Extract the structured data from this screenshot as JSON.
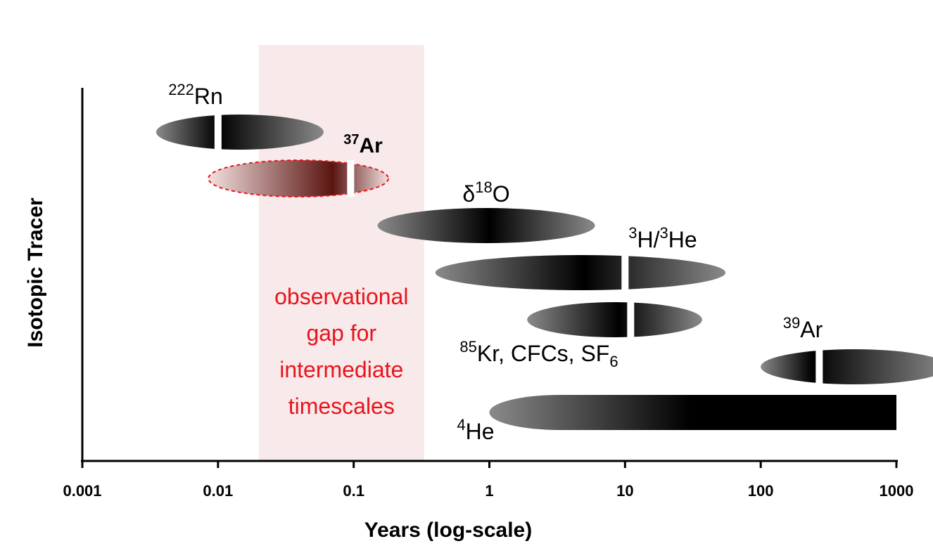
{
  "chart_data": {
    "type": "range",
    "xlabel": "Years (log-scale)",
    "ylabel": "Isotopic Tracer",
    "xscale": "log",
    "xlim": [
      0.001,
      1000
    ],
    "xticks": [
      "0.001",
      "0.01",
      "0.1",
      "1",
      "10",
      "100",
      "1000"
    ],
    "gap": {
      "x_range": [
        0.02,
        0.33
      ],
      "lines": [
        "observational",
        "gap for",
        "intermediate",
        "timescales"
      ],
      "text_color": "#e8141c",
      "fill_color": "#f8e9ea"
    },
    "tracers": [
      {
        "id": "rn222",
        "mass": "222",
        "symbol": "Rn",
        "range": [
          0.0035,
          0.06
        ],
        "peak": 0.01,
        "marker": 0.01,
        "shape": "ellipse",
        "color": "#000000"
      },
      {
        "id": "ar37",
        "mass": "37",
        "symbol": "Ar",
        "range": [
          0.0085,
          0.18
        ],
        "peak": 0.07,
        "marker": 0.095,
        "shape": "ellipse",
        "color": "#5a1410",
        "label_color": "#e8141c",
        "outline": "#e8141c"
      },
      {
        "id": "o18",
        "prefix": "δ",
        "mass": "18",
        "symbol": "O",
        "range": [
          0.15,
          6
        ],
        "peak": 1.0,
        "marker": null,
        "shape": "ellipse",
        "color": "#000000"
      },
      {
        "id": "h3he3",
        "mass": "3",
        "symbol": "H/",
        "mass2": "3",
        "symbol2": "He",
        "range": [
          0.4,
          55
        ],
        "peak": 5,
        "marker": 10,
        "shape": "ellipse",
        "color": "#000000"
      },
      {
        "id": "kr85",
        "mass": "85",
        "symbol": "Kr, CFCs, SF",
        "sub": "6",
        "range": [
          1.9,
          37
        ],
        "peak": 9,
        "marker": 11,
        "shape": "ellipse",
        "color": "#000000"
      },
      {
        "id": "ar39",
        "mass": "39",
        "symbol": "Ar",
        "range": [
          100,
          2400
        ],
        "peak": 240,
        "marker": 270,
        "shape": "ellipse",
        "color": "#000000"
      },
      {
        "id": "he4",
        "mass": "4",
        "symbol": "He",
        "range": [
          1,
          1000
        ],
        "peak": 30,
        "marker": null,
        "shape": "open-ended",
        "color": "#000000"
      }
    ]
  }
}
